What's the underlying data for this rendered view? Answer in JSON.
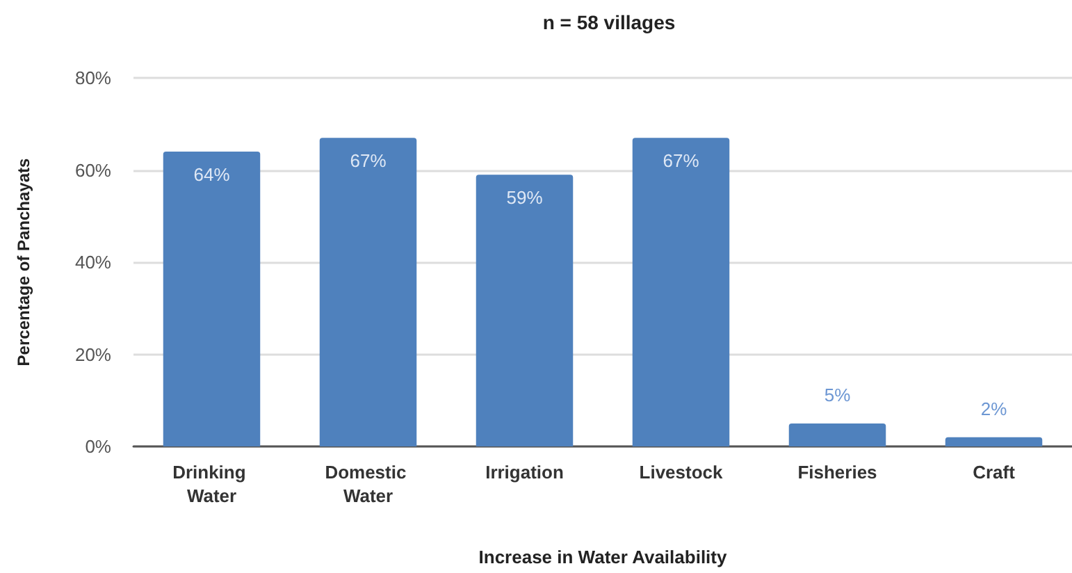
{
  "chart_data": {
    "type": "bar",
    "title": "n = 58 villages",
    "xlabel": "Increase in Water Availability",
    "ylabel": "Percentage of Panchayats",
    "categories": [
      "Drinking Water",
      "Domestic Water",
      "Irrigation",
      "Livestock",
      "Fisheries",
      "Craft"
    ],
    "values": [
      64,
      67,
      59,
      67,
      5,
      2
    ],
    "value_labels": [
      "64%",
      "67%",
      "59%",
      "67%",
      "5%",
      "2%"
    ],
    "color": "#4f81bd",
    "ylim": [
      0,
      80
    ],
    "yticks": [
      {
        "value": 0,
        "label": "0%"
      },
      {
        "value": 20,
        "label": "20%"
      },
      {
        "value": 40,
        "label": "40%"
      },
      {
        "value": 60,
        "label": "60%"
      },
      {
        "value": 80,
        "label": "80%"
      }
    ],
    "grid": "y"
  }
}
